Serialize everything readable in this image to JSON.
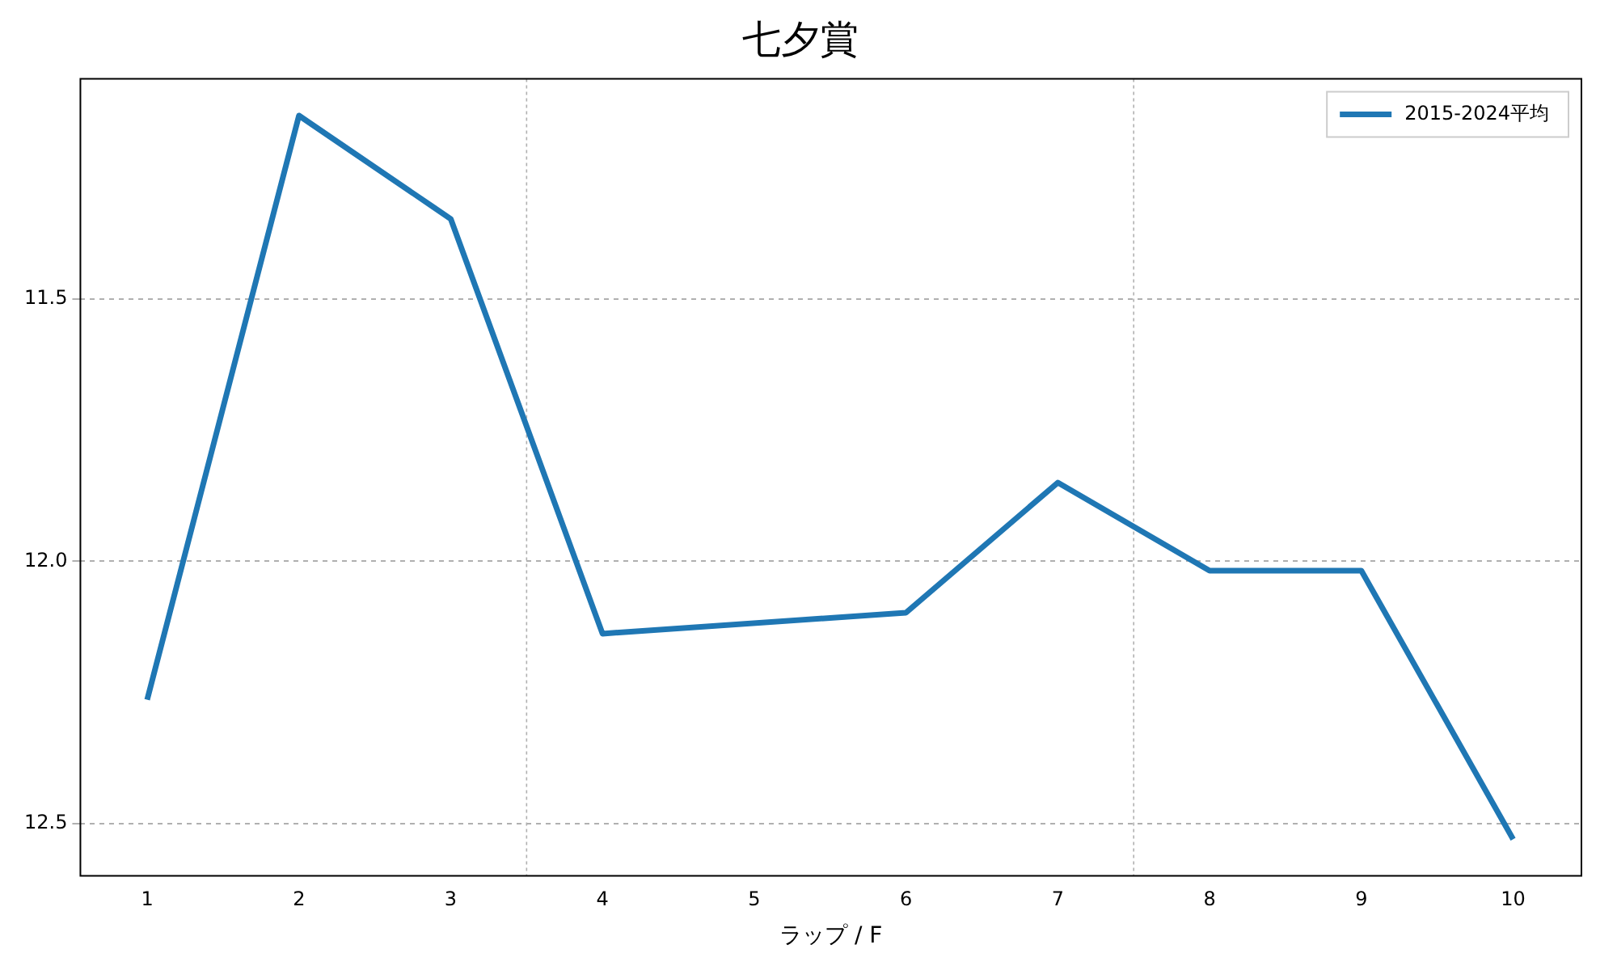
{
  "chart_data": {
    "type": "line",
    "title": "七夕賞",
    "xlabel": "ラップ / F",
    "x": [
      1,
      2,
      3,
      4,
      6,
      7,
      8,
      9,
      10
    ],
    "series": [
      {
        "name": "2015-2024平均",
        "color": "#1f77b4",
        "values": [
          12.264,
          11.15,
          11.347,
          12.138,
          12.098,
          11.85,
          12.018,
          12.018,
          12.53
        ]
      }
    ],
    "xlim": [
      0.56,
      10.45
    ],
    "xticks": [
      1,
      2,
      3,
      4,
      5,
      6,
      7,
      8,
      9,
      10
    ],
    "ylim": [
      12.6,
      11.08
    ],
    "yticks": [
      11.5,
      {
        "value": 12,
        "label": "12.0"
      },
      12.5
    ],
    "grid": "y",
    "legend": "top right",
    "marker": "none",
    "line_style": "solid",
    "ref_lines": [
      {
        "axis": "x",
        "value": 3.5,
        "color": "#b0b0b0",
        "line_style": "dotted"
      },
      {
        "axis": "x",
        "value": 7.5,
        "color": "#b0b0b0",
        "line_style": "dotted"
      }
    ]
  }
}
